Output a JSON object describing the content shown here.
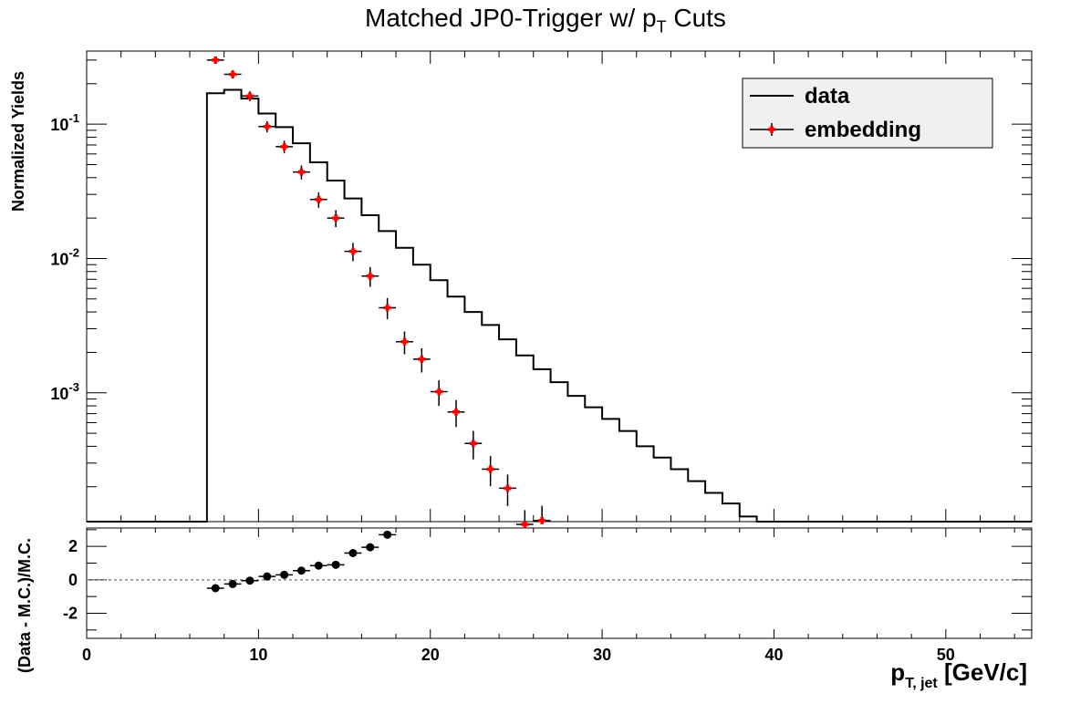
{
  "chart_data": [
    {
      "type": "line",
      "title_main": "Matched JP0-Trigger w/ p",
      "title_sub": "T",
      "title_tail": " Cuts",
      "ylabel": "Normalized Yields",
      "yscale": "log",
      "ylim": [
        0.00011,
        0.35
      ],
      "xlim": [
        0,
        55
      ],
      "yticks": [
        {
          "base": "10",
          "exp": "-1"
        },
        {
          "base": "10",
          "exp": "-2"
        },
        {
          "base": "10",
          "exp": "-3"
        }
      ],
      "legend": {
        "placement": "top-right",
        "entries": [
          {
            "label": "data",
            "style": "line"
          },
          {
            "label": "embedding",
            "style": "marker"
          }
        ]
      },
      "series": [
        {
          "name": "data",
          "style": "step-histogram",
          "bin_edges": [
            7,
            8,
            9,
            10,
            11,
            12,
            13,
            14,
            15,
            16,
            17,
            18,
            19,
            20,
            21,
            22,
            23,
            24,
            25,
            26,
            27,
            28,
            29,
            30,
            31,
            32,
            33,
            34,
            35,
            36,
            37,
            38,
            39,
            40
          ],
          "values": [
            0.17,
            0.18,
            0.155,
            0.12,
            0.095,
            0.072,
            0.052,
            0.038,
            0.028,
            0.021,
            0.016,
            0.012,
            0.009,
            0.0069,
            0.0052,
            0.004,
            0.0032,
            0.0025,
            0.0019,
            0.0015,
            0.0012,
            0.00095,
            0.00078,
            0.00064,
            0.00052,
            0.0004,
            0.00033,
            0.00027,
            0.00022,
            0.00018,
            0.00015,
            0.00012,
            0.00011
          ],
          "color": "#000000"
        },
        {
          "name": "embedding",
          "style": "markers-with-errors",
          "x": [
            7.5,
            8.5,
            9.5,
            10.5,
            11.5,
            12.5,
            13.5,
            14.5,
            15.5,
            16.5,
            17.5,
            18.5,
            19.5,
            20.5,
            21.5,
            22.5,
            23.5,
            24.5,
            25.5,
            26.5
          ],
          "y": [
            0.3,
            0.235,
            0.162,
            0.096,
            0.068,
            0.044,
            0.0275,
            0.02,
            0.0113,
            0.0074,
            0.0043,
            0.0024,
            0.00178,
            0.00102,
            0.00072,
            0.00042,
            0.00027,
            0.000195,
            0.000105,
            0.000112
          ],
          "color": "#ff0000"
        }
      ]
    },
    {
      "type": "scatter",
      "ylabel": "(Data - M.C.)/M.C.",
      "xlabel_main": "p",
      "xlabel_sub": "T, jet",
      "xlabel_unit": " [GeV/c]",
      "xlim": [
        0,
        55
      ],
      "ylim": [
        -3.5,
        3.1
      ],
      "xticks": [
        "0",
        "10",
        "20",
        "30",
        "40",
        "50"
      ],
      "yticks": [
        "2",
        "0",
        "-2"
      ],
      "reference_line": 0,
      "series": [
        {
          "name": "ratio",
          "x": [
            7.5,
            8.5,
            9.5,
            10.5,
            11.5,
            12.5,
            13.5,
            14.5,
            15.5,
            16.5,
            17.5
          ],
          "y": [
            -0.5,
            -0.25,
            -0.05,
            0.2,
            0.3,
            0.55,
            0.85,
            0.9,
            1.6,
            1.95,
            2.7
          ],
          "color": "#000000"
        }
      ]
    }
  ]
}
